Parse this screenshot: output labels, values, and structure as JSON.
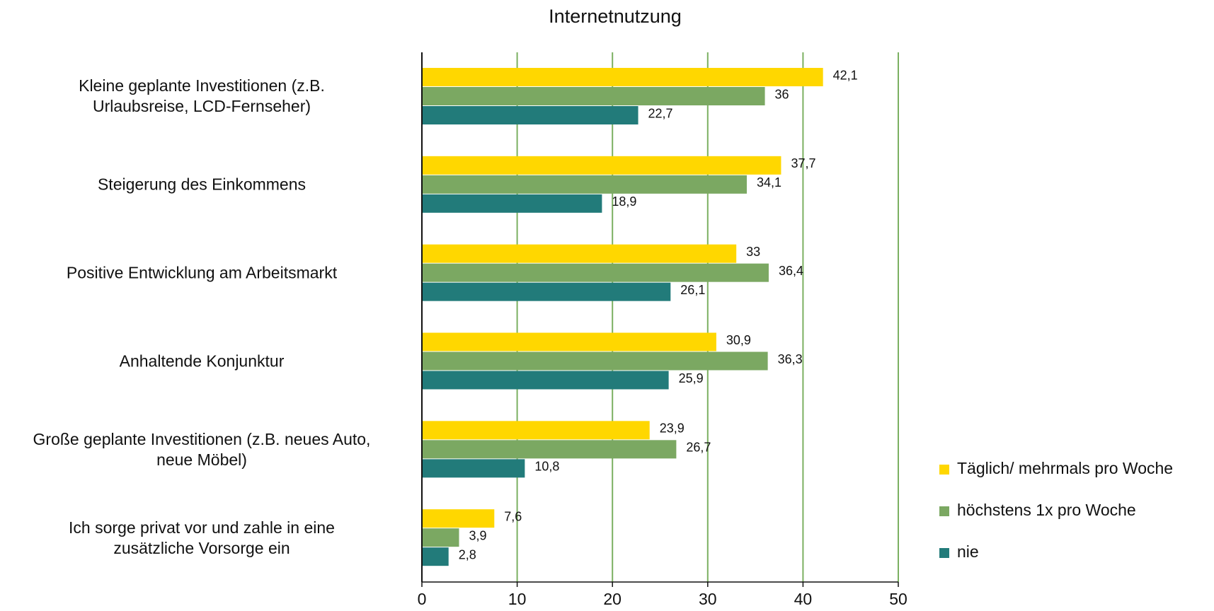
{
  "chart_data": {
    "type": "barh",
    "title": "Internetnutzung",
    "categories": [
      "Kleine geplante Investitionen (z.B.\nUrlaubsreise, LCD-Fernseher)",
      "Steigerung des Einkommens",
      "Positive Entwicklung am Arbeitsmarkt",
      "Anhaltende Konjunktur",
      "Große geplante Investitionen (z.B. neues Auto,\nneue Möbel)",
      "Ich sorge privat vor und zahle in eine\nzusätzliche Vorsorge ein"
    ],
    "series": [
      {
        "name": "Täglich/ mehrmals pro Woche",
        "color": "#FFD700",
        "values": [
          42.1,
          37.7,
          33,
          30.9,
          23.9,
          7.6
        ],
        "value_labels": [
          "42,1",
          "37,7",
          "33",
          "30,9",
          "23,9",
          "7,6"
        ]
      },
      {
        "name": "höchstens 1x pro Woche",
        "color": "#7BA862",
        "values": [
          36,
          34.1,
          36.4,
          36.3,
          26.7,
          3.9
        ],
        "value_labels": [
          "36",
          "34,1",
          "36,4",
          "36,3",
          "26,7",
          "3,9"
        ]
      },
      {
        "name": "nie",
        "color": "#227B7A",
        "values": [
          22.7,
          18.9,
          26.1,
          25.9,
          10.8,
          2.8
        ],
        "value_labels": [
          "22,7",
          "18,9",
          "26,1",
          "25,9",
          "10,8",
          "2,8"
        ]
      }
    ],
    "xlim": [
      0,
      50
    ],
    "xticks": [
      0,
      10,
      20,
      30,
      40,
      50
    ],
    "grid": true,
    "grid_color": "#7BB061",
    "legend": "right"
  }
}
